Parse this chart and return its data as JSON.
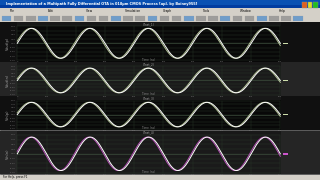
{
  "window_bg": "#c0c0c0",
  "title_bar_color": "#003087",
  "toolbar_bg": "#d4d0c8",
  "panel_configs": [
    {
      "bg": "#080808",
      "sidebar_bg": "#101010",
      "wave_colors": [
        "#ccddaa",
        "#ffffff"
      ],
      "label": "Vout(p)"
    },
    {
      "bg": "#1a1a1a",
      "sidebar_bg": "#252525",
      "wave_colors": [
        "#ccddaa",
        "#ffffff"
      ],
      "label": "Vout(n)"
    },
    {
      "bg": "#080808",
      "sidebar_bg": "#101010",
      "wave_colors": [
        "#ccddaa",
        "#ffffff"
      ],
      "label": "Vin(p)"
    },
    {
      "bg": "#1a1a1a",
      "sidebar_bg": "#252525",
      "wave_colors": [
        "#cc55cc",
        "#ffffff"
      ],
      "label": "Vin(n)"
    }
  ],
  "grid_color": "#2a3a2a",
  "wave_linewidth": 0.7,
  "cycles": 4.5,
  "n_hgrid": 8,
  "n_vgrid": 9
}
